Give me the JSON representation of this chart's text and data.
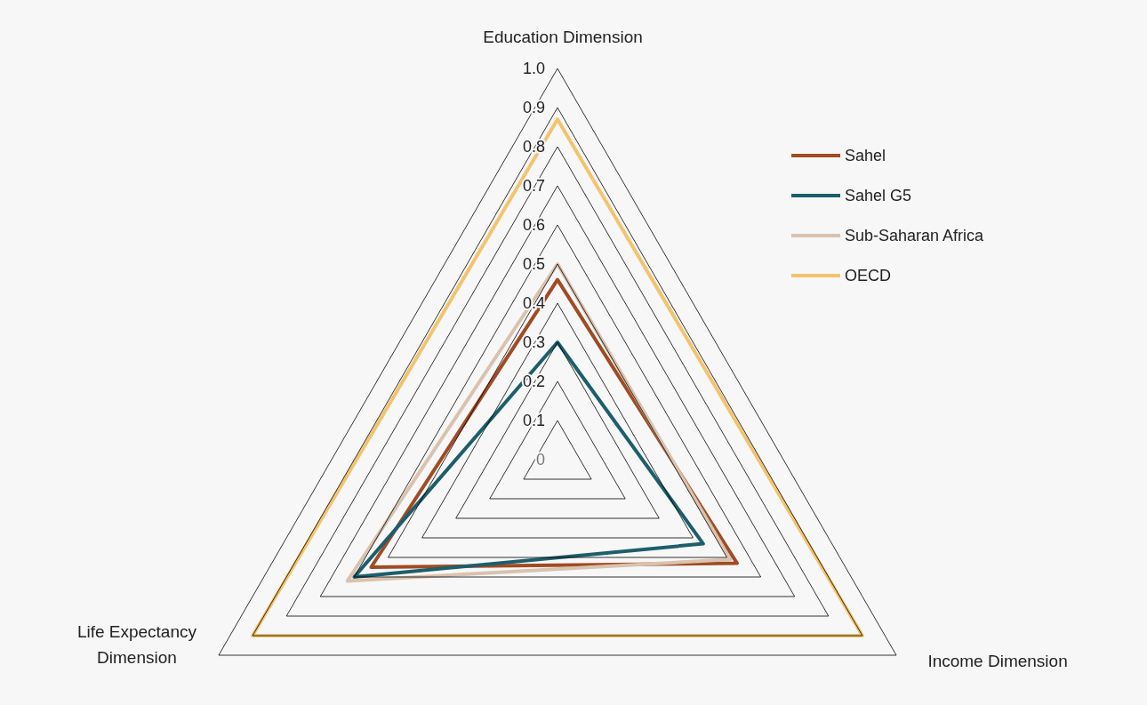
{
  "chart_data": {
    "type": "radar",
    "categories": [
      "Education Dimension",
      "Income Dimension",
      "Life Expectancy Dimension"
    ],
    "ylim": [
      0,
      1
    ],
    "yticks": [
      0,
      0.1,
      0.2,
      0.3,
      0.4,
      0.5,
      0.6,
      0.7,
      0.8,
      0.9,
      {
        "value": 1,
        "label": "1.0"
      }
    ],
    "legend": "top right",
    "series": [
      {
        "name": "Sahel",
        "color": "#a04b24",
        "values": [
          0.46,
          0.53,
          0.55
        ]
      },
      {
        "name": "Sahel G5",
        "color": "#1d5e6b",
        "values": [
          0.3,
          0.43,
          0.6
        ]
      },
      {
        "name": "Sub-Saharan Africa",
        "color": "#d9c2ae",
        "values": [
          0.5,
          0.51,
          0.62
        ]
      },
      {
        "name": "OECD",
        "color": "#f2c46e",
        "values": [
          0.87,
          0.9,
          0.9
        ]
      }
    ]
  }
}
